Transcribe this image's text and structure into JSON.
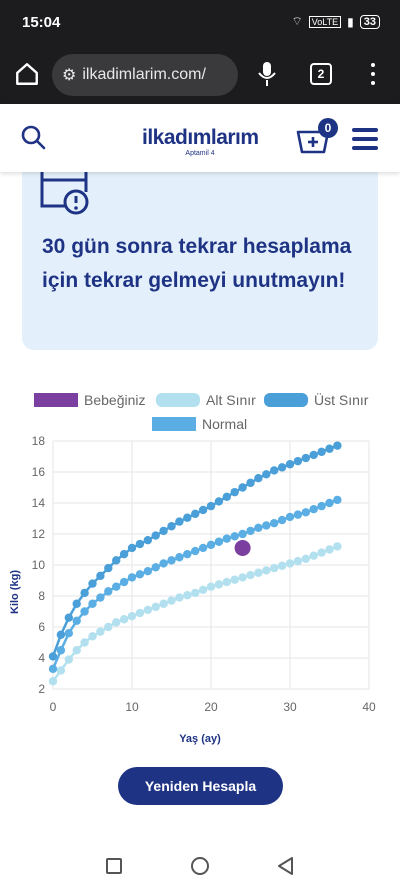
{
  "status_bar": {
    "time": "15:04",
    "network": "VoLTE",
    "battery": "33"
  },
  "browser": {
    "url": "ilkadimlarim.com/",
    "tab_count": "2"
  },
  "header": {
    "logo_text": "ilkadımlarım",
    "logo_sub": "Aptamil 4",
    "cart_count": "0"
  },
  "info_card": {
    "message": "30 gün sonra tekrar hesaplama için tekrar gelmeyi unutmayın!"
  },
  "colors": {
    "brand": "#1f3385",
    "baby": "#7b3fa0",
    "lower": "#b3e0ef",
    "upper": "#4a9fd8",
    "normal": "#5aaee3",
    "card_bg": "#e3f0fb"
  },
  "chart_data": {
    "type": "line",
    "legend": [
      "Bebeğiniz",
      "Alt Sınır",
      "Üst Sınır",
      "Normal"
    ],
    "xlabel": "Yaş (ay)",
    "ylabel": "Kilo (kg)",
    "xlim": [
      0,
      40
    ],
    "ylim": [
      2,
      18
    ],
    "xticks": [
      0,
      10,
      20,
      30,
      40
    ],
    "yticks": [
      2,
      4,
      6,
      8,
      10,
      12,
      14,
      16,
      18
    ],
    "grid": true,
    "series": [
      {
        "name": "Alt Sınır",
        "color": "#b3e0ef",
        "x": [
          0,
          1,
          2,
          3,
          4,
          5,
          6,
          7,
          8,
          9,
          10,
          12,
          14,
          16,
          18,
          20,
          22,
          24,
          26,
          28,
          30,
          32,
          34,
          36
        ],
        "values": [
          2.5,
          3.2,
          3.9,
          4.5,
          5.0,
          5.4,
          5.7,
          6.0,
          6.3,
          6.5,
          6.7,
          7.1,
          7.5,
          7.9,
          8.2,
          8.6,
          8.9,
          9.2,
          9.5,
          9.8,
          10.1,
          10.4,
          10.8,
          11.2
        ]
      },
      {
        "name": "Normal",
        "color": "#5aaee3",
        "x": [
          0,
          1,
          2,
          3,
          4,
          5,
          6,
          7,
          8,
          9,
          10,
          12,
          14,
          16,
          18,
          20,
          22,
          24,
          26,
          28,
          30,
          32,
          34,
          36
        ],
        "values": [
          3.3,
          4.5,
          5.6,
          6.4,
          7.0,
          7.5,
          7.9,
          8.3,
          8.6,
          8.9,
          9.2,
          9.6,
          10.1,
          10.5,
          10.9,
          11.3,
          11.7,
          12.0,
          12.4,
          12.7,
          13.1,
          13.4,
          13.8,
          14.2
        ]
      },
      {
        "name": "Üst Sınır",
        "color": "#4a9fd8",
        "x": [
          0,
          1,
          2,
          3,
          4,
          5,
          6,
          7,
          8,
          9,
          10,
          12,
          14,
          16,
          18,
          20,
          22,
          24,
          26,
          28,
          30,
          32,
          34,
          36
        ],
        "values": [
          4.1,
          5.5,
          6.6,
          7.5,
          8.2,
          8.8,
          9.3,
          9.8,
          10.3,
          10.7,
          11.1,
          11.6,
          12.2,
          12.8,
          13.3,
          13.8,
          14.4,
          15.0,
          15.6,
          16.1,
          16.5,
          16.9,
          17.3,
          17.7
        ]
      }
    ],
    "baby_point": {
      "name": "Bebeğiniz",
      "x": 24,
      "y": 11.1
    }
  },
  "actions": {
    "recalc_label": "Yeniden Hesapla"
  }
}
